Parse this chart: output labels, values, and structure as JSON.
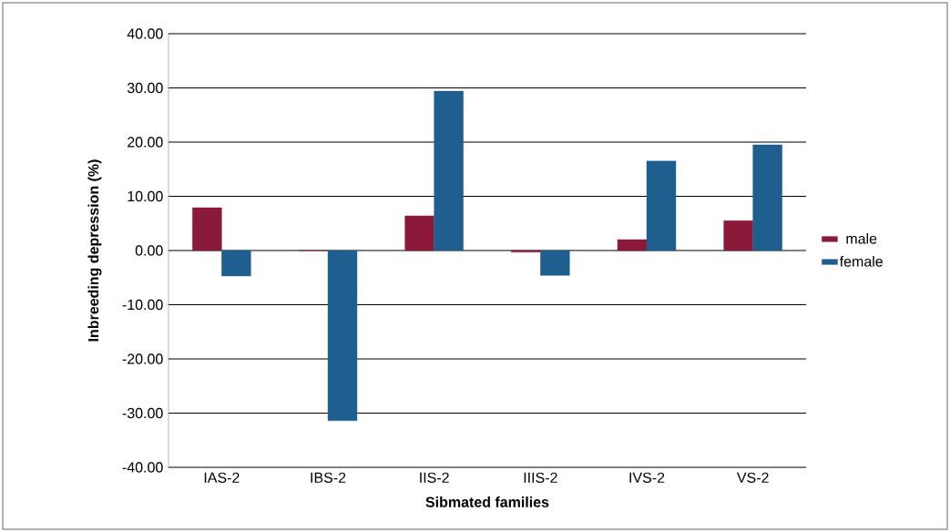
{
  "chart_data": {
    "type": "bar",
    "xlabel": "Sibmated families",
    "ylabel": "Inbreeding depression (%)",
    "categories": [
      "IAS-2",
      "IBS-2",
      "IIS-2",
      "IIIS-2",
      "IVS-2",
      "VS-2"
    ],
    "series": [
      {
        "name": "male",
        "color": "#8b1a3a",
        "values": [
          7.9,
          0,
          6.4,
          -0.3,
          2.0,
          5.5
        ]
      },
      {
        "name": "female",
        "color": "#1f5f8f",
        "values": [
          -4.7,
          -31.4,
          29.4,
          -4.6,
          16.5,
          19.5
        ]
      }
    ],
    "ylim": [
      -40,
      40
    ],
    "yticks": [
      {
        "value": -40,
        "label": "-40.00"
      },
      {
        "value": -30,
        "label": "-30.00"
      },
      {
        "value": -20,
        "label": "-20.00"
      },
      {
        "value": -10,
        "label": "-10.00"
      },
      {
        "value": 0,
        "label": "0.00"
      },
      {
        "value": 10,
        "label": "10.00"
      },
      {
        "value": 20,
        "label": "20.00"
      },
      {
        "value": 30,
        "label": "30.00"
      },
      {
        "value": 40,
        "label": "40.00"
      }
    ],
    "grid": "y",
    "legend": "right"
  }
}
